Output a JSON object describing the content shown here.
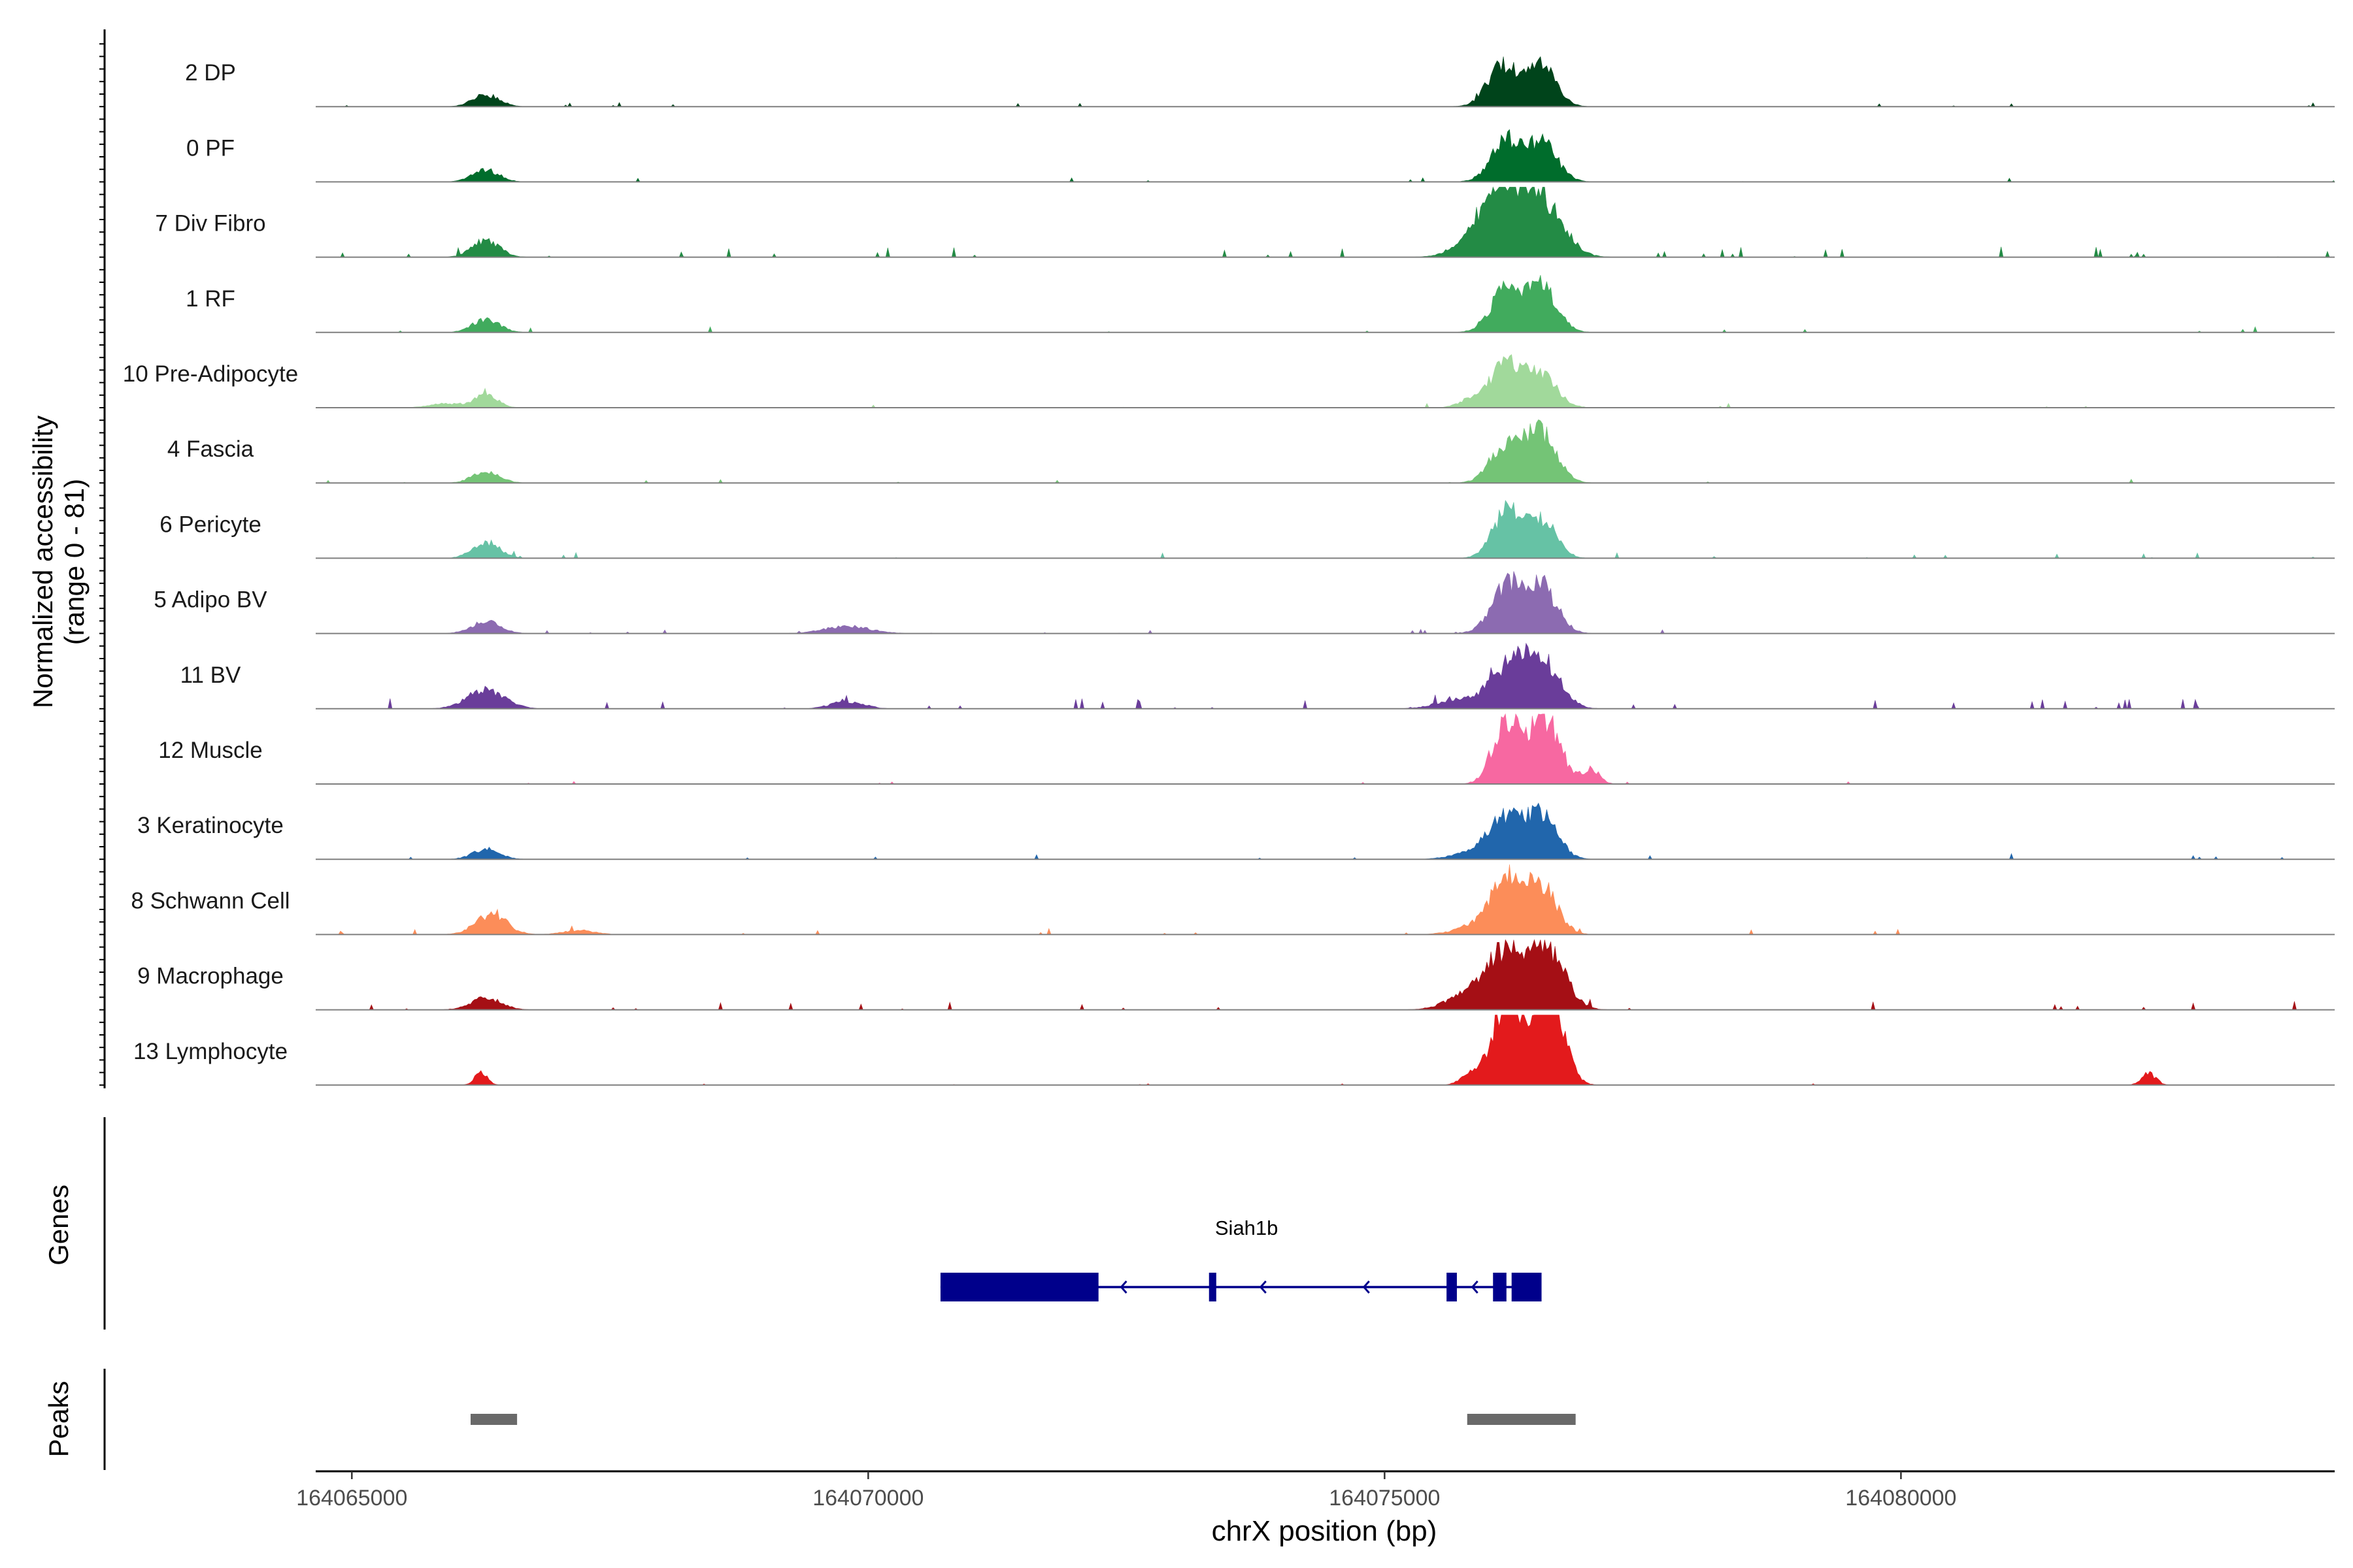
{
  "chart_data": {
    "type": "area",
    "title": "",
    "ylabel": "Normalized accessibility",
    "ylabel_range": "(range 0 - 81)",
    "ylim": [
      0,
      81
    ],
    "xlabel": "chrX position (bp)",
    "xlim": [
      164064650,
      164084200
    ],
    "x_ticks": [
      164065000,
      164070000,
      164075000,
      164080000
    ],
    "x_tick_labels": [
      "164065000",
      "164070000",
      "164075000",
      "164080000"
    ],
    "tracks": [
      {
        "name": "2 DP",
        "color": "#00441b",
        "peaks": [
          [
            164066300,
            130,
            8
          ],
          [
            164076150,
            150,
            28
          ],
          [
            164076520,
            140,
            27
          ]
        ],
        "noise": 1.0
      },
      {
        "name": "0 PF",
        "color": "#006d2c",
        "peaks": [
          [
            164066300,
            130,
            8
          ],
          [
            164076180,
            150,
            27
          ],
          [
            164076520,
            150,
            27
          ]
        ],
        "noise": 1.0
      },
      {
        "name": "7 Div Fibro",
        "color": "#238b45",
        "peaks": [
          [
            164066300,
            130,
            12
          ],
          [
            164076150,
            200,
            38
          ],
          [
            164076520,
            200,
            38
          ],
          [
            164075900,
            200,
            12
          ]
        ],
        "noise": 2.4
      },
      {
        "name": "1 RF",
        "color": "#41ab5d",
        "peaks": [
          [
            164066300,
            130,
            9
          ],
          [
            164076180,
            150,
            30
          ],
          [
            164076520,
            150,
            30
          ]
        ],
        "noise": 1.4
      },
      {
        "name": "10 Pre-Adipocyte",
        "color": "#a1d99b",
        "peaks": [
          [
            164066300,
            110,
            9
          ],
          [
            164076180,
            150,
            30
          ],
          [
            164076520,
            150,
            22
          ],
          [
            164075850,
            120,
            6
          ],
          [
            164065900,
            150,
            3
          ]
        ],
        "noise": 1.0
      },
      {
        "name": "4 Fascia",
        "color": "#74c476",
        "peaks": [
          [
            164066300,
            130,
            8
          ],
          [
            164076180,
            150,
            27
          ],
          [
            164076520,
            150,
            34
          ]
        ],
        "noise": 1.0
      },
      {
        "name": "6 Pericyte",
        "color": "#66c2a5",
        "peaks": [
          [
            164066300,
            130,
            11
          ],
          [
            164076180,
            140,
            32
          ],
          [
            164076520,
            140,
            27
          ]
        ],
        "noise": 1.4
      },
      {
        "name": "5 Adipo BV",
        "color": "#8c6bb1",
        "peaks": [
          [
            164066300,
            140,
            8
          ],
          [
            164076180,
            150,
            32
          ],
          [
            164076520,
            150,
            32
          ],
          [
            164069800,
            220,
            5
          ]
        ],
        "noise": 1.0
      },
      {
        "name": "11 BV",
        "color": "#6a3d9a",
        "peaks": [
          [
            164066300,
            180,
            13
          ],
          [
            164076180,
            170,
            27
          ],
          [
            164076520,
            170,
            34
          ],
          [
            164069800,
            160,
            5
          ],
          [
            164075700,
            200,
            6
          ]
        ],
        "noise": 2.4
      },
      {
        "name": "12 Muscle",
        "color": "#f768a1",
        "peaks": [
          [
            164076180,
            130,
            45
          ],
          [
            164076550,
            150,
            45
          ],
          [
            164077000,
            80,
            10
          ]
        ],
        "noise": 0.6
      },
      {
        "name": "3 Keratinocyte",
        "color": "#2166ac",
        "peaks": [
          [
            164066300,
            130,
            7
          ],
          [
            164076180,
            150,
            27
          ],
          [
            164076520,
            150,
            30
          ],
          [
            164075900,
            200,
            6
          ]
        ],
        "noise": 1.4
      },
      {
        "name": "8 Schwann Cell",
        "color": "#fc8d59",
        "peaks": [
          [
            164066350,
            150,
            14
          ],
          [
            164076180,
            150,
            36
          ],
          [
            164076520,
            150,
            32
          ],
          [
            164075900,
            200,
            6
          ],
          [
            164067200,
            150,
            3
          ]
        ],
        "noise": 1.4
      },
      {
        "name": "9 Macrophage",
        "color": "#a50f15",
        "peaks": [
          [
            164066300,
            150,
            8
          ],
          [
            164076150,
            180,
            36
          ],
          [
            164076550,
            180,
            45
          ],
          [
            164075800,
            200,
            10
          ]
        ],
        "noise": 2.0
      },
      {
        "name": "13 Lymphocyte",
        "color": "#e31a1c",
        "peaks": [
          [
            164066250,
            60,
            9
          ],
          [
            164076180,
            150,
            54
          ],
          [
            164076580,
            140,
            68
          ],
          [
            164082400,
            70,
            8
          ],
          [
            164075800,
            80,
            6
          ]
        ],
        "noise": 0.4
      }
    ],
    "genes": {
      "title": "Genes",
      "name": "Siah1b",
      "color": "#00008b",
      "span": [
        164070700,
        164076500
      ],
      "exons": [
        [
          164070700,
          164072230
        ],
        [
          164073300,
          164073370
        ],
        [
          164075600,
          164075700
        ],
        [
          164076050,
          164076180
        ],
        [
          164076230,
          164076520
        ]
      ],
      "arrows": [
        164072450,
        164073800,
        164074800,
        164075850
      ]
    },
    "peak_track": {
      "title": "Peaks",
      "color": "#696969",
      "regions": [
        [
          164066150,
          164066600
        ],
        [
          164075800,
          164076850
        ]
      ]
    }
  }
}
